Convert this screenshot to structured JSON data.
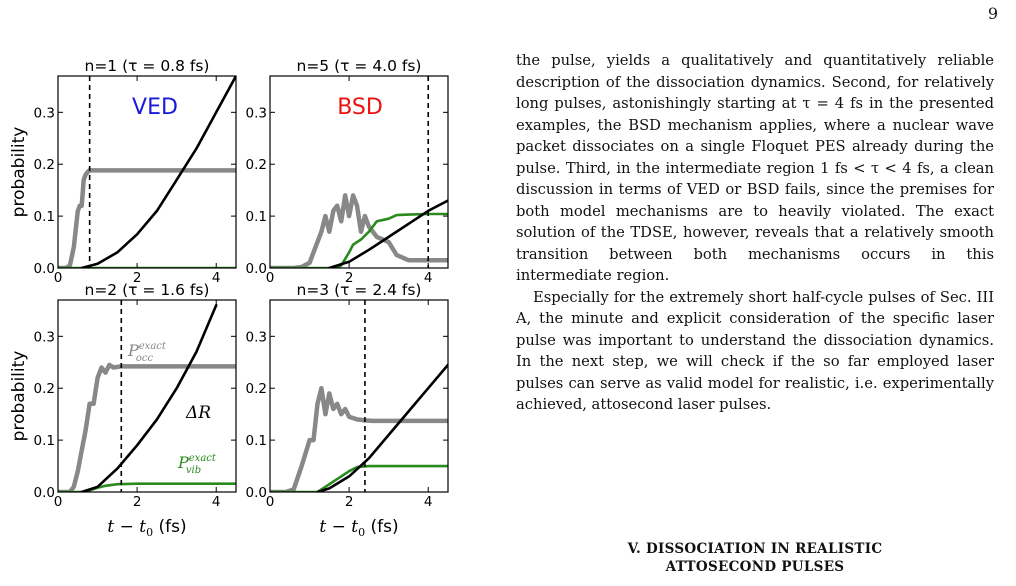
{
  "page_number": "9",
  "figure": {
    "ylabel": "probability",
    "xlabel_math": "t − t",
    "xlabel_sub": "0",
    "xlabel_unit": " (fs)",
    "yticks": [
      "0.0",
      "0.1",
      "0.2",
      "0.3"
    ],
    "xticks": [
      "0",
      "2",
      "4"
    ],
    "label_VED": "VED",
    "label_BSD": "BSD",
    "label_occ_main": "P",
    "label_occ_sup": "exact",
    "label_occ_sub": "occ",
    "label_vib_main": "P",
    "label_vib_sup": "exact",
    "label_vib_sub": "vib",
    "label_dR": "ΔR",
    "colors": {
      "occ": "#888888",
      "vib": "#2a8a1e",
      "dR": "#000000",
      "ved": "#1a1adc",
      "bsd": "#ee1111"
    }
  },
  "chart_data": [
    {
      "type": "line",
      "title": "n=1 (τ = 0.8 fs)",
      "xlabel": "t − t0 (fs)",
      "ylabel": "probability",
      "xlim": [
        0,
        4.5
      ],
      "ylim": [
        0,
        0.37
      ],
      "vline": 0.8,
      "series": [
        {
          "name": "P_occ^exact",
          "x": [
            0,
            0.2,
            0.3,
            0.4,
            0.5,
            0.55,
            0.6,
            0.65,
            0.7,
            0.75,
            0.8,
            1.2,
            4.5
          ],
          "y": [
            0,
            0,
            0.005,
            0.04,
            0.11,
            0.12,
            0.12,
            0.17,
            0.18,
            0.185,
            0.188,
            0.188,
            0.188
          ]
        },
        {
          "name": "P_vib^exact",
          "x": [
            0,
            4.5
          ],
          "y": [
            0,
            0
          ]
        },
        {
          "name": "ΔR",
          "x": [
            0.6,
            1.0,
            1.5,
            2.0,
            2.5,
            3.0,
            3.5,
            4.0,
            4.5
          ],
          "y": [
            0,
            0.008,
            0.03,
            0.065,
            0.11,
            0.17,
            0.23,
            0.3,
            0.37
          ]
        }
      ]
    },
    {
      "type": "line",
      "title": "n=5 (τ = 4.0 fs)",
      "xlabel": "t − t0 (fs)",
      "ylabel": "probability",
      "xlim": [
        0,
        4.5
      ],
      "ylim": [
        0,
        0.37
      ],
      "vline": 4.0,
      "series": [
        {
          "name": "P_occ^exact",
          "x": [
            0,
            0.6,
            0.8,
            1.0,
            1.1,
            1.3,
            1.4,
            1.5,
            1.6,
            1.7,
            1.8,
            1.9,
            2.0,
            2.1,
            2.2,
            2.3,
            2.4,
            2.5,
            2.7,
            3.0,
            3.2,
            3.5,
            4.0,
            4.5
          ],
          "y": [
            0,
            0,
            0.002,
            0.01,
            0.03,
            0.07,
            0.1,
            0.07,
            0.11,
            0.12,
            0.09,
            0.14,
            0.1,
            0.14,
            0.12,
            0.07,
            0.1,
            0.08,
            0.06,
            0.05,
            0.025,
            0.015,
            0.015,
            0.015
          ]
        },
        {
          "name": "P_vib^exact",
          "x": [
            0,
            1.7,
            1.8,
            2.0,
            2.1,
            2.3,
            2.5,
            2.7,
            3.0,
            3.2,
            3.5,
            4.0,
            4.5
          ],
          "y": [
            0,
            0,
            0.005,
            0.03,
            0.045,
            0.055,
            0.07,
            0.09,
            0.095,
            0.102,
            0.103,
            0.104,
            0.104
          ]
        },
        {
          "name": "ΔR",
          "x": [
            1.5,
            2.0,
            2.5,
            3.0,
            3.5,
            4.0,
            4.5
          ],
          "y": [
            0,
            0.012,
            0.035,
            0.06,
            0.085,
            0.11,
            0.13
          ]
        }
      ]
    },
    {
      "type": "line",
      "title": "n=2 (τ = 1.6 fs)",
      "xlabel": "t − t0 (fs)",
      "ylabel": "probability",
      "xlim": [
        0,
        4.5
      ],
      "ylim": [
        0,
        0.37
      ],
      "vline": 1.6,
      "series": [
        {
          "name": "P_occ^exact",
          "x": [
            0,
            0.3,
            0.4,
            0.5,
            0.6,
            0.7,
            0.8,
            0.9,
            1.0,
            1.1,
            1.2,
            1.3,
            1.4,
            1.6,
            2.0,
            4.5
          ],
          "y": [
            0,
            0,
            0.01,
            0.04,
            0.08,
            0.12,
            0.17,
            0.17,
            0.22,
            0.24,
            0.23,
            0.245,
            0.24,
            0.242,
            0.242,
            0.242
          ]
        },
        {
          "name": "P_vib^exact",
          "x": [
            0,
            0.6,
            0.8,
            1.0,
            1.2,
            1.5,
            2.0,
            4.5
          ],
          "y": [
            0,
            0,
            0.003,
            0.008,
            0.012,
            0.015,
            0.016,
            0.016
          ]
        },
        {
          "name": "ΔR",
          "x": [
            0.6,
            1.0,
            1.5,
            2.0,
            2.5,
            3.0,
            3.5,
            4.0
          ],
          "y": [
            0,
            0.01,
            0.045,
            0.09,
            0.14,
            0.2,
            0.27,
            0.36
          ]
        }
      ]
    },
    {
      "type": "line",
      "title": "n=3 (τ = 2.4 fs)",
      "xlabel": "t − t0 (fs)",
      "ylabel": "probability",
      "xlim": [
        0,
        4.5
      ],
      "ylim": [
        0,
        0.37
      ],
      "vline": 2.4,
      "series": [
        {
          "name": "P_occ^exact",
          "x": [
            0,
            0.4,
            0.6,
            0.8,
            1.0,
            1.1,
            1.2,
            1.3,
            1.4,
            1.5,
            1.6,
            1.7,
            1.8,
            1.9,
            2.0,
            2.2,
            2.4,
            2.6,
            3.0,
            4.5
          ],
          "y": [
            0,
            0,
            0.005,
            0.05,
            0.1,
            0.1,
            0.17,
            0.2,
            0.15,
            0.19,
            0.16,
            0.17,
            0.15,
            0.16,
            0.145,
            0.14,
            0.138,
            0.137,
            0.137,
            0.137
          ]
        },
        {
          "name": "P_vib^exact",
          "x": [
            0,
            1.2,
            1.4,
            1.6,
            1.8,
            2.0,
            2.2,
            2.5,
            4.5
          ],
          "y": [
            0,
            0,
            0.01,
            0.02,
            0.03,
            0.04,
            0.048,
            0.05,
            0.05
          ]
        },
        {
          "name": "ΔR",
          "x": [
            1.2,
            1.5,
            2.0,
            2.5,
            3.0,
            3.5,
            4.0,
            4.5
          ],
          "y": [
            0,
            0.007,
            0.03,
            0.065,
            0.11,
            0.155,
            0.2,
            0.245
          ]
        }
      ]
    }
  ],
  "text": {
    "p1": "the pulse, yields a qualitatively and quantitatively reliable description of the dissociation dynamics. Second, for relatively long pulses, astonishingly starting at τ = 4 fs in the presented examples, the BSD mechanism applies, where a nuclear wave packet dissociates on a single Floquet PES already during the pulse. Third, in the intermediate region 1 fs < τ < 4 fs, a clean discussion in terms of VED or BSD fails, since the premises for both model mechanisms are to heavily violated. The exact solution of the TDSE, however, reveals that a relatively smooth transition between both mechanisms occurs in this intermediate region.",
    "p2": "Especially for the extremely short half-cycle pulses of Sec. III A, the minute and explicit consideration of the specific laser pulse was important to understand the dissociation dynamics. In the next step, we will check if the so far employed laser pulses can serve as valid model for realistic, i.e. experimentally achieved, attosecond laser pulses.",
    "section_line1": "V.   DISSOCIATION IN REALISTIC",
    "section_line2": "ATTOSECOND PULSES"
  }
}
